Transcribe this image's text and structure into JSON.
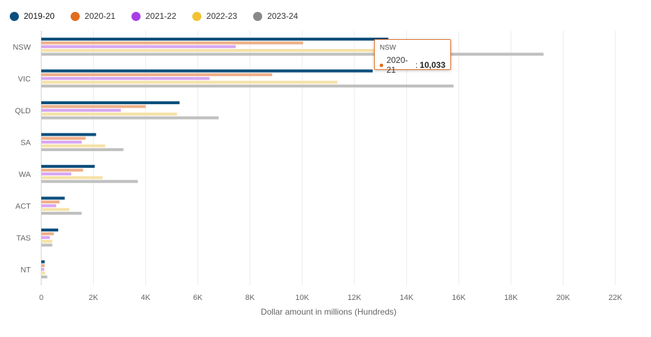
{
  "legend": [
    {
      "label": "2019-20",
      "color": "#0b4f7c",
      "icon": "circle-dot-icon"
    },
    {
      "label": "2020-21",
      "color": "#e06c1c",
      "icon": "circle-dot-icon"
    },
    {
      "label": "2021-22",
      "color": "#a83ee6",
      "icon": "circle-dot-icon"
    },
    {
      "label": "2022-23",
      "color": "#f1c232",
      "icon": "circle-dot-icon"
    },
    {
      "label": "2023-24",
      "color": "#888888",
      "icon": "circle-dot-icon"
    }
  ],
  "tooltip": {
    "title": "NSW",
    "series": "2020-21",
    "separator": ":",
    "value": "10,033",
    "color": "#e06c1c"
  },
  "chart_data": {
    "type": "bar",
    "orientation": "horizontal",
    "categories": [
      "NSW",
      "VIC",
      "QLD",
      "SA",
      "WA",
      "ACT",
      "TAS",
      "NT"
    ],
    "series": [
      {
        "name": "2019-20",
        "color": "#0b4f7c",
        "values": [
          13300,
          12700,
          5300,
          2100,
          2050,
          900,
          650,
          130
        ]
      },
      {
        "name": "2020-21",
        "color": "#efb08a",
        "values": [
          10033,
          8850,
          4000,
          1700,
          1600,
          700,
          480,
          130
        ]
      },
      {
        "name": "2021-22",
        "color": "#d7a6f2",
        "values": [
          7450,
          6450,
          3050,
          1550,
          1150,
          570,
          330,
          110
        ]
      },
      {
        "name": "2022-23",
        "color": "#f6e2a8",
        "values": [
          12900,
          11350,
          5200,
          2450,
          2350,
          1080,
          420,
          150
        ]
      },
      {
        "name": "2023-24",
        "color": "#c0c0c0",
        "values": [
          19250,
          15800,
          6800,
          3150,
          3700,
          1550,
          420,
          230
        ]
      }
    ],
    "xlim": [
      0,
      22000
    ],
    "xticks": [
      0,
      2000,
      4000,
      6000,
      8000,
      10000,
      12000,
      14000,
      16000,
      18000,
      20000,
      22000
    ],
    "xtick_labels": [
      "0",
      "2K",
      "4K",
      "6K",
      "8K",
      "10K",
      "12K",
      "14K",
      "16K",
      "18K",
      "20K",
      "22K"
    ],
    "xlabel": "Dollar amount in millions (Hundreds)",
    "ylabel": "",
    "title": "",
    "grid": true,
    "legend_position": "top-left"
  }
}
